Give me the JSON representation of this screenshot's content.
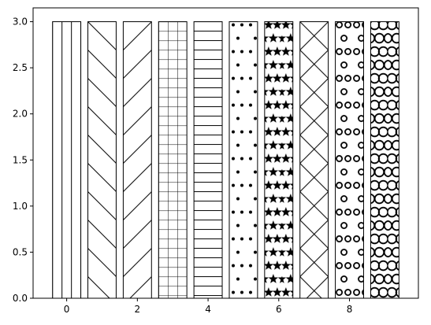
{
  "chart_data": {
    "type": "bar",
    "title": "",
    "xlabel": "",
    "ylabel": "",
    "categories": [
      0,
      1,
      2,
      3,
      4,
      5,
      6,
      7,
      8,
      9
    ],
    "values": [
      3,
      3,
      3,
      3,
      3,
      3,
      3,
      3,
      3,
      3
    ],
    "hatches": [
      "|",
      "\\",
      "/",
      "+",
      "-",
      ".",
      "*",
      "x",
      "o",
      "O"
    ],
    "xlim": [
      -0.95,
      9.95
    ],
    "ylim": [
      0,
      3.15
    ],
    "bar_width": 0.8,
    "x_ticks": [
      0,
      2,
      4,
      6,
      8
    ],
    "x_tick_labels": [
      "0",
      "2",
      "4",
      "6",
      "8"
    ],
    "y_ticks": [
      0,
      0.5,
      1,
      1.5,
      2,
      2.5,
      3
    ],
    "y_tick_labels": [
      "0.0",
      "0.5",
      "1.0",
      "1.5",
      "2.0",
      "2.5",
      "3.0"
    ],
    "bar_fill": "#ffffff",
    "bar_edge": "#000000",
    "grid": false,
    "legend": "none"
  }
}
